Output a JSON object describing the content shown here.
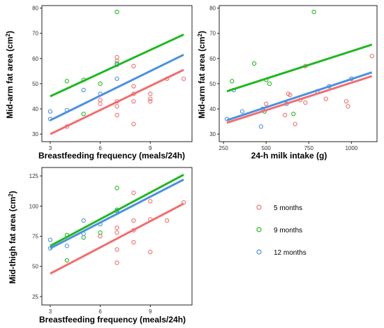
{
  "colors": {
    "m5": "#f26d6d",
    "m9": "#1fb81f",
    "m12": "#4a90e2",
    "frame": "#222222",
    "gridline": "#f0f0f0"
  },
  "legend": [
    {
      "key": "m5",
      "label": "5 months"
    },
    {
      "key": "m9",
      "label": "9 months"
    },
    {
      "key": "m12",
      "label": "12 months"
    }
  ],
  "chart_data": [
    {
      "type": "scatter",
      "xlabel": "Breastfeeding frequency (meals/24h)",
      "ylabel": "Mid-arm fat area (cm",
      "ylabel_sup": "2",
      "ylabel_close": ")",
      "xlim": [
        2.5,
        11.5
      ],
      "ylim": [
        27,
        81
      ],
      "xticks": [
        3,
        6,
        9
      ],
      "yticks": [
        30,
        40,
        50,
        60,
        70,
        80
      ],
      "series": [
        {
          "key": "m5",
          "points": [
            [
              4,
              33
            ],
            [
              6,
              42
            ],
            [
              6,
              43.5
            ],
            [
              7,
              60.5
            ],
            [
              7,
              59
            ],
            [
              7,
              43
            ],
            [
              7,
              41
            ],
            [
              7,
              37.5
            ],
            [
              8,
              57
            ],
            [
              8,
              49
            ],
            [
              8,
              46
            ],
            [
              8,
              43
            ],
            [
              8,
              34
            ],
            [
              9,
              46
            ],
            [
              9,
              44
            ],
            [
              9,
              43
            ],
            [
              10,
              52
            ],
            [
              11,
              52
            ]
          ],
          "line": [
            [
              3,
              30
            ],
            [
              11,
              55.5
            ]
          ]
        },
        {
          "key": "m9",
          "points": [
            [
              4,
              51
            ],
            [
              5,
              51.5
            ],
            [
              5,
              38
            ],
            [
              6,
              50
            ],
            [
              7,
              78.5
            ],
            [
              7,
              58
            ]
          ],
          "line": [
            [
              3,
              45
            ],
            [
              11,
              69.5
            ]
          ]
        },
        {
          "key": "m12",
          "points": [
            [
              3,
              39
            ],
            [
              3,
              36
            ],
            [
              4,
              39.5
            ],
            [
              5,
              47.5
            ],
            [
              6,
              46
            ],
            [
              7,
              57.5
            ],
            [
              7,
              52
            ]
          ],
          "line": [
            [
              3,
              35.5
            ],
            [
              11,
              61.5
            ]
          ]
        }
      ]
    },
    {
      "type": "scatter",
      "xlabel": "24-h milk intake (g)",
      "ylabel": "Mid-arm fat area (cm",
      "ylabel_sup": "2",
      "ylabel_close": ")",
      "xlim": [
        225,
        1150
      ],
      "ylim": [
        27,
        81
      ],
      "xticks": [
        250,
        500,
        750,
        1000
      ],
      "yticks": [
        30,
        40,
        50,
        60,
        70,
        80
      ],
      "series": [
        {
          "key": "m5",
          "points": [
            [
              500,
              42
            ],
            [
              610,
              37.5
            ],
            [
              630,
              46
            ],
            [
              640,
              45.5
            ],
            [
              670,
              34
            ],
            [
              700,
              43.5
            ],
            [
              730,
              57
            ],
            [
              730,
              42.5
            ],
            [
              850,
              44
            ],
            [
              970,
              43
            ],
            [
              980,
              41
            ],
            [
              1000,
              52
            ],
            [
              1120,
              61
            ]
          ],
          "line": [
            [
              270,
              34.5
            ],
            [
              1120,
              53
            ]
          ]
        },
        {
          "key": "m9",
          "points": [
            [
              300,
              51
            ],
            [
              430,
              58
            ],
            [
              490,
              39
            ],
            [
              500,
              51.5
            ],
            [
              520,
              50
            ],
            [
              660,
              38
            ],
            [
              780,
              78.5
            ]
          ],
          "line": [
            [
              270,
              47
            ],
            [
              1120,
              65.5
            ]
          ]
        },
        {
          "key": "m12",
          "points": [
            [
              270,
              36
            ],
            [
              310,
              47.5
            ],
            [
              360,
              39
            ],
            [
              470,
              33
            ],
            [
              480,
              40
            ],
            [
              620,
              42
            ],
            [
              800,
              47
            ],
            [
              870,
              49
            ],
            [
              1000,
              52
            ]
          ],
          "line": [
            [
              270,
              35.5
            ],
            [
              1120,
              54.5
            ]
          ]
        }
      ]
    },
    {
      "type": "scatter",
      "xlabel": "Breastfeeding frequency (meals/24h)",
      "ylabel": "Mid-thigh fat area (cm",
      "ylabel_sup": "2",
      "ylabel_close": ")",
      "xlim": [
        2.5,
        11.5
      ],
      "ylim": [
        18,
        132
      ],
      "xticks": [
        3,
        6,
        9
      ],
      "yticks": [
        25,
        50,
        75,
        100,
        125
      ],
      "series": [
        {
          "key": "m5",
          "points": [
            [
              6,
              75
            ],
            [
              7,
              82
            ],
            [
              7,
              78
            ],
            [
              7,
              64
            ],
            [
              7,
              53
            ],
            [
              8,
              111
            ],
            [
              8,
              88
            ],
            [
              8,
              80
            ],
            [
              8,
              70
            ],
            [
              9,
              104
            ],
            [
              9,
              89
            ],
            [
              9,
              62
            ],
            [
              10,
              88
            ],
            [
              11,
              103
            ]
          ],
          "line": [
            [
              3,
              44
            ],
            [
              11,
              102
            ]
          ]
        },
        {
          "key": "m9",
          "points": [
            [
              4,
              76
            ],
            [
              4,
              55
            ],
            [
              5,
              74
            ],
            [
              6,
              78
            ],
            [
              7,
              115
            ],
            [
              7,
              97
            ]
          ],
          "line": [
            [
              3,
              67
            ],
            [
              11,
              126
            ]
          ]
        },
        {
          "key": "m12",
          "points": [
            [
              3,
              72
            ],
            [
              3,
              65
            ],
            [
              4,
              67
            ],
            [
              5,
              88
            ],
            [
              5,
              77
            ],
            [
              6,
              85
            ],
            [
              7,
              96
            ]
          ],
          "line": [
            [
              3,
              65
            ],
            [
              11,
              122
            ]
          ]
        }
      ]
    }
  ]
}
